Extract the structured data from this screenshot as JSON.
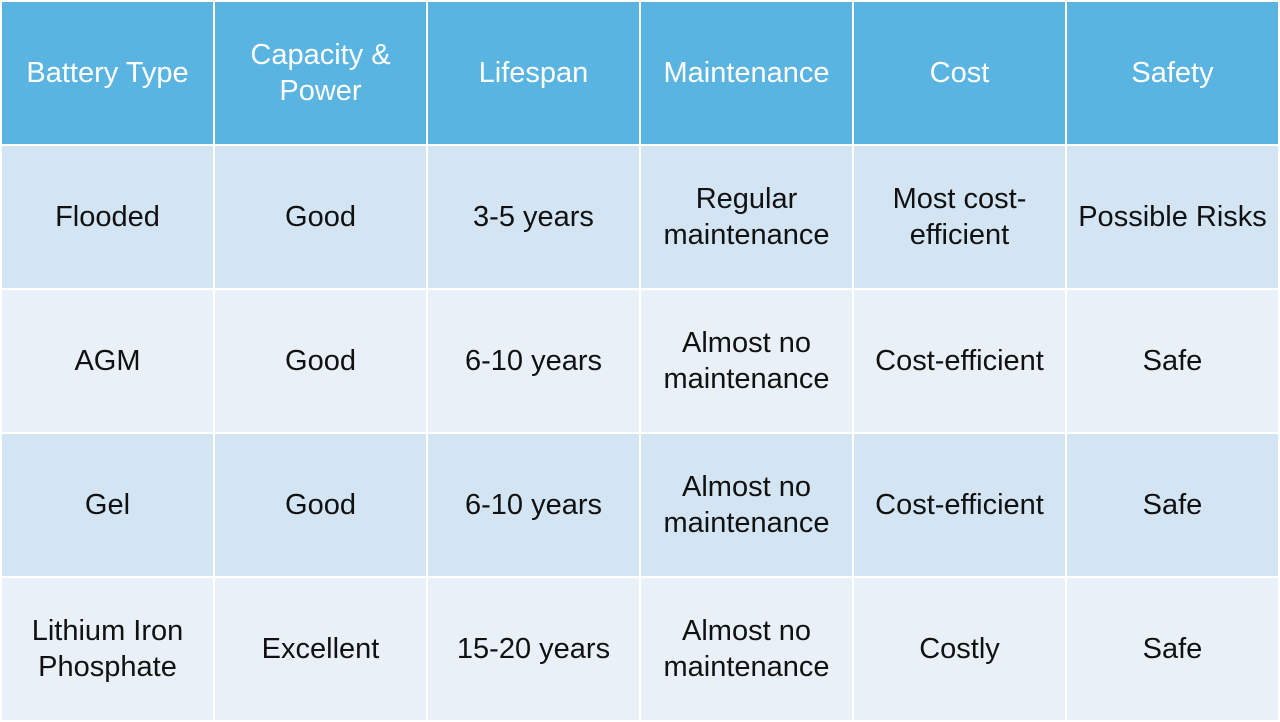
{
  "header": {
    "columns": [
      "Battery Type",
      "Capacity &\nPower",
      "Lifespan",
      "Maintenance",
      "Cost",
      "Safety"
    ]
  },
  "rows": [
    {
      "type": "Flooded",
      "capacity": "Good",
      "lifespan": "3-5 years",
      "maintenance": "Regular maintenance",
      "cost": "Most cost-efficient",
      "safety": "Possible Risks"
    },
    {
      "type": "AGM",
      "capacity": "Good",
      "lifespan": "6-10 years",
      "maintenance": "Almost no maintenance",
      "cost": "Cost-efficient",
      "safety": "Safe"
    },
    {
      "type": "Gel",
      "capacity": "Good",
      "lifespan": "6-10 years",
      "maintenance": "Almost no maintenance",
      "cost": "Cost-efficient",
      "safety": "Safe"
    },
    {
      "type": "Lithium Iron Phosphate",
      "capacity": "Excellent",
      "lifespan": "15-20 years",
      "maintenance": "Almost no maintenance",
      "cost": "Costly",
      "safety": "Safe"
    }
  ],
  "colors": {
    "header_bg": "#5ab4e2",
    "header_text": "#ffffff",
    "row_dark": "#d3e4f3",
    "row_light": "#e9f0f8"
  }
}
